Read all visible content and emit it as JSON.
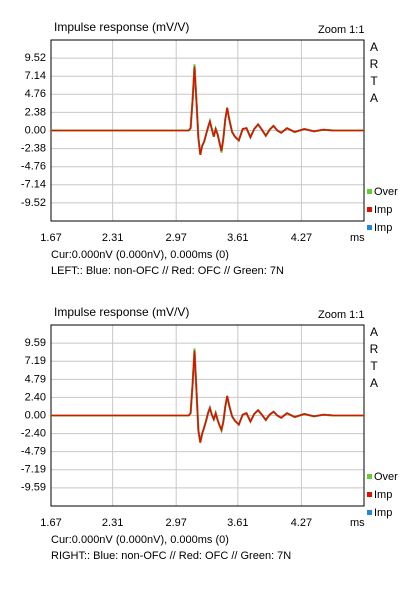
{
  "chart_data": [
    {
      "type": "line",
      "title": "Impulse response (mV/V)",
      "zoom_label": "Zoom 1:1",
      "side_label": "ARTA",
      "x_unit": "ms",
      "cursor": "Cur:0.000nV (0.000nV), 0.000ms (0)",
      "caption": "LEFT:: Blue: non-OFC // Red: OFC // Green: 7N",
      "x": [
        1.67,
        2.5,
        3.0,
        3.1,
        3.12,
        3.14,
        3.16,
        3.18,
        3.2,
        3.22,
        3.24,
        3.26,
        3.28,
        3.3,
        3.32,
        3.34,
        3.36,
        3.38,
        3.4,
        3.42,
        3.44,
        3.46,
        3.48,
        3.5,
        3.52,
        3.55,
        3.58,
        3.62,
        3.66,
        3.7,
        3.74,
        3.78,
        3.82,
        3.86,
        3.9,
        3.94,
        3.98,
        4.02,
        4.06,
        4.12,
        4.2,
        4.3,
        4.4,
        4.5,
        4.6,
        4.92
      ],
      "series": [
        {
          "name": "Over",
          "color": "#66cc33",
          "values": [
            0,
            0,
            0,
            0,
            0.3,
            4,
            8.7,
            4,
            -1,
            -3.2,
            -2,
            -1.5,
            -0.5,
            0.4,
            1.2,
            0.2,
            -0.8,
            0.2,
            -0.5,
            -1.6,
            -2.9,
            -1,
            1.5,
            3.0,
            1.5,
            -0.2,
            -0.8,
            -1.3,
            0.2,
            0.3,
            -0.9,
            0.2,
            0.8,
            0.1,
            -0.7,
            0.1,
            0.6,
            0,
            -0.3,
            0.3,
            -0.2,
            0.2,
            -0.1,
            0.1,
            0,
            0
          ]
        },
        {
          "name": "Imp",
          "color": "#dd1100",
          "values": [
            0,
            0,
            0,
            0,
            0.3,
            4,
            8.4,
            4,
            -1,
            -3.2,
            -2,
            -1.5,
            -0.5,
            0.4,
            1.2,
            0.2,
            -0.8,
            0.2,
            -0.5,
            -1.6,
            -2.7,
            -1,
            1.5,
            3.0,
            1.5,
            -0.2,
            -0.8,
            -1.3,
            0.2,
            0.3,
            -0.9,
            0.2,
            0.8,
            0.1,
            -0.7,
            0.1,
            0.6,
            0,
            -0.3,
            0.3,
            -0.2,
            0.2,
            -0.1,
            0.1,
            0,
            0
          ]
        },
        {
          "name": "Imp",
          "color": "#2288dd",
          "values": [
            0,
            0,
            0,
            0,
            0.3,
            4,
            8.3,
            4,
            -1,
            -3.1,
            -2,
            -1.5,
            -0.5,
            0.4,
            1.2,
            0.2,
            -0.8,
            0.2,
            -0.5,
            -1.6,
            -2.6,
            -1,
            1.5,
            2.9,
            1.5,
            -0.2,
            -0.8,
            -1.3,
            0.2,
            0.3,
            -0.9,
            0.2,
            0.8,
            0.1,
            -0.7,
            0.1,
            0.6,
            0,
            -0.3,
            0.3,
            -0.2,
            0.2,
            -0.1,
            0.1,
            0,
            0
          ]
        }
      ],
      "xlim": [
        1.67,
        4.92
      ],
      "ylim": [
        -11.9,
        11.9
      ],
      "xticks": [
        1.67,
        2.31,
        2.97,
        3.61,
        4.27
      ],
      "yticks": [
        9.52,
        7.14,
        4.76,
        2.38,
        {
          "value": 0,
          "label": "0.00"
        },
        -2.38,
        -4.76,
        -7.14,
        -9.52
      ],
      "grid": true
    },
    {
      "type": "line",
      "title": "Impulse response (mV/V)",
      "zoom_label": "Zoom 1:1",
      "side_label": "ARTA",
      "x_unit": "ms",
      "cursor": "Cur:0.000nV (0.000nV), 0.000ms (0)",
      "caption": "RIGHT:: Blue: non-OFC // Red: OFC // Green: 7N",
      "x": [
        1.67,
        2.5,
        3.0,
        3.1,
        3.12,
        3.14,
        3.16,
        3.18,
        3.2,
        3.22,
        3.24,
        3.26,
        3.28,
        3.3,
        3.32,
        3.34,
        3.36,
        3.38,
        3.4,
        3.42,
        3.44,
        3.46,
        3.48,
        3.5,
        3.52,
        3.55,
        3.58,
        3.62,
        3.66,
        3.7,
        3.74,
        3.78,
        3.82,
        3.86,
        3.9,
        3.94,
        3.98,
        4.02,
        4.06,
        4.12,
        4.2,
        4.3,
        4.4,
        4.5,
        4.6,
        4.92
      ],
      "series": [
        {
          "name": "Over",
          "color": "#66cc33",
          "values": [
            0,
            0,
            0,
            0,
            0.3,
            4.2,
            8.9,
            3.5,
            -2,
            -3.6,
            -2.4,
            -1.6,
            -0.7,
            0.3,
            1.0,
            0.1,
            -0.5,
            0.3,
            -0.6,
            -1.3,
            -2.0,
            -0.8,
            1.2,
            2.6,
            1.3,
            -0.1,
            -0.7,
            -1.2,
            0.1,
            0.3,
            -0.8,
            0.2,
            0.7,
            0.1,
            -0.6,
            0.1,
            0.5,
            0,
            -0.3,
            0.3,
            -0.2,
            0.2,
            -0.1,
            0.1,
            0,
            0
          ]
        },
        {
          "name": "Imp",
          "color": "#dd1100",
          "values": [
            0,
            0,
            0,
            0,
            0.3,
            4.2,
            8.6,
            3.5,
            -2,
            -3.6,
            -2.4,
            -1.6,
            -0.7,
            0.3,
            1.0,
            0.1,
            -0.5,
            0.3,
            -0.6,
            -1.3,
            -1.9,
            -0.8,
            1.2,
            2.6,
            1.3,
            -0.1,
            -0.7,
            -1.2,
            0.1,
            0.3,
            -0.8,
            0.2,
            0.7,
            0.1,
            -0.6,
            0.1,
            0.5,
            0,
            -0.3,
            0.3,
            -0.2,
            0.2,
            -0.1,
            0.1,
            0,
            0
          ]
        },
        {
          "name": "Imp",
          "color": "#2288dd",
          "values": [
            0,
            0,
            0,
            0,
            0.3,
            4.1,
            8.5,
            3.5,
            -2,
            -3.5,
            -2.4,
            -1.6,
            -0.7,
            0.3,
            1.0,
            0.1,
            -0.5,
            0.3,
            -0.6,
            -1.3,
            -1.9,
            -0.8,
            1.2,
            2.5,
            1.3,
            -0.1,
            -0.7,
            -1.2,
            0.1,
            0.3,
            -0.8,
            0.2,
            0.7,
            0.1,
            -0.6,
            0.1,
            0.5,
            0,
            -0.3,
            0.3,
            -0.2,
            0.2,
            -0.1,
            0.1,
            0,
            0
          ]
        }
      ],
      "xlim": [
        1.67,
        4.92
      ],
      "ylim": [
        -12,
        12
      ],
      "xticks": [
        1.67,
        2.31,
        2.97,
        3.61,
        4.27
      ],
      "yticks": [
        9.59,
        7.19,
        4.79,
        {
          "value": 2.4,
          "label": "2.40"
        },
        {
          "value": 0,
          "label": "0.00"
        },
        {
          "value": -2.4,
          "label": "-2.40"
        },
        -4.79,
        -7.19,
        -9.59
      ],
      "grid": true
    }
  ]
}
